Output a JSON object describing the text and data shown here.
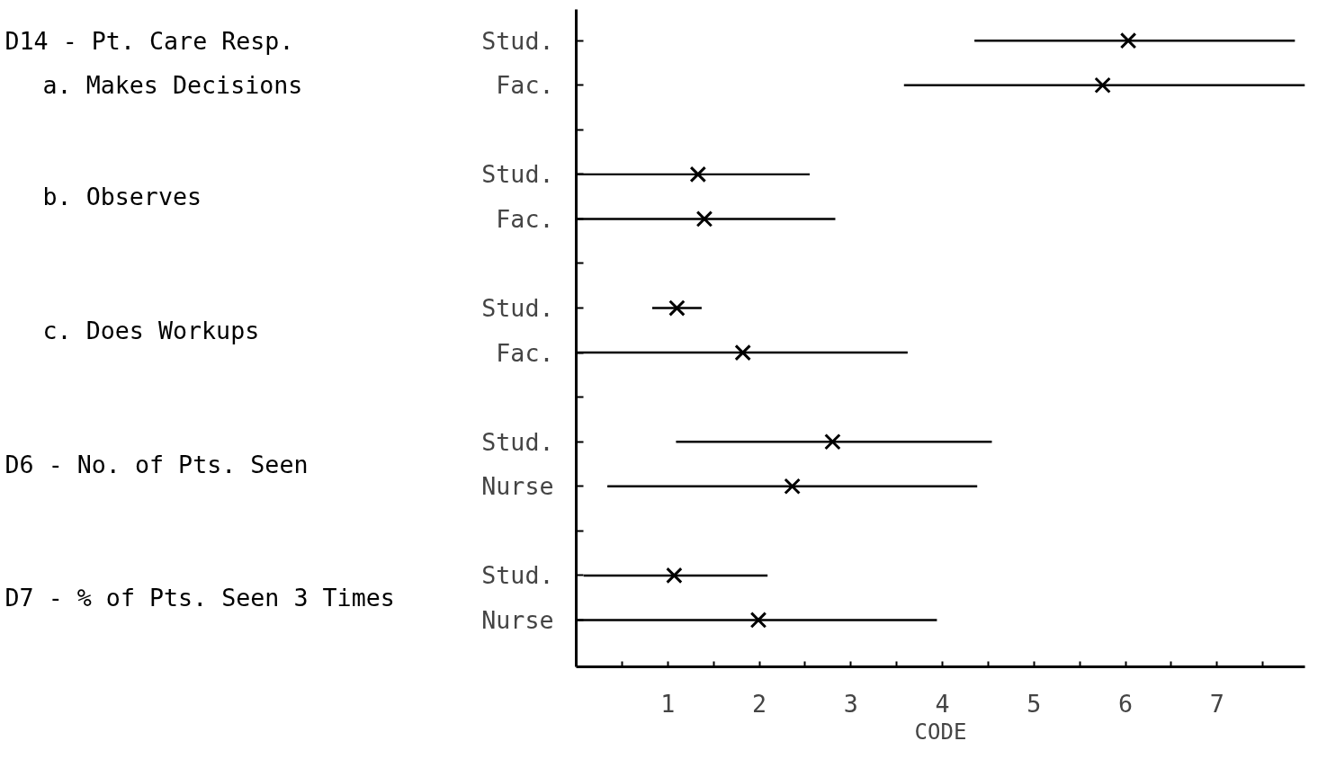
{
  "chart_data": {
    "type": "bar",
    "orientation": "horizontal",
    "xlabel": "CODE",
    "categories": [
      "Stud.",
      "Fac.",
      null,
      "Stud.",
      "Fac.",
      null,
      "Stud.",
      "Fac.",
      null,
      "Stud.",
      "Nurse",
      null,
      "Stud.",
      "Nurse"
    ],
    "series": [
      {
        "color": "#000000",
        "base": [
          4.35,
          3.58,
          null,
          0,
          0,
          null,
          0.83,
          0,
          null,
          1.09,
          0.34,
          null,
          0.08,
          0
        ],
        "values": [
          3.5,
          4.38,
          null,
          2.55,
          2.83,
          null,
          0.54,
          3.62,
          null,
          3.45,
          4.04,
          null,
          2.01,
          3.94
        ]
      },
      {
        "type": "scatter",
        "marker": "cross",
        "color": "#000000",
        "values": [
          6.03,
          5.75,
          null,
          1.33,
          1.4,
          null,
          1.1,
          1.82,
          null,
          2.8,
          2.36,
          null,
          1.07,
          1.99
        ]
      }
    ],
    "xlim": [
      0,
      7.96
    ],
    "xticks": [
      {
        "value": 0.5,
        "label": null
      },
      1,
      {
        "value": 1.5,
        "label": null
      },
      2,
      {
        "value": 2.5,
        "label": null
      },
      3,
      {
        "value": 3.5,
        "label": null
      },
      4,
      {
        "value": 4.5,
        "label": null
      },
      5,
      {
        "value": 5.5,
        "label": null
      },
      6,
      {
        "value": 6.5,
        "label": null
      },
      7,
      {
        "value": 7.5,
        "label": null
      }
    ],
    "annotations": [
      "D14 - Pt. Care Resp.",
      "a.  Makes Decisions",
      "b.  Observes",
      "c.  Does Workups",
      "D6  - No. of Pts. Seen",
      "D7 - % of Pts. Seen 3 Times"
    ]
  }
}
